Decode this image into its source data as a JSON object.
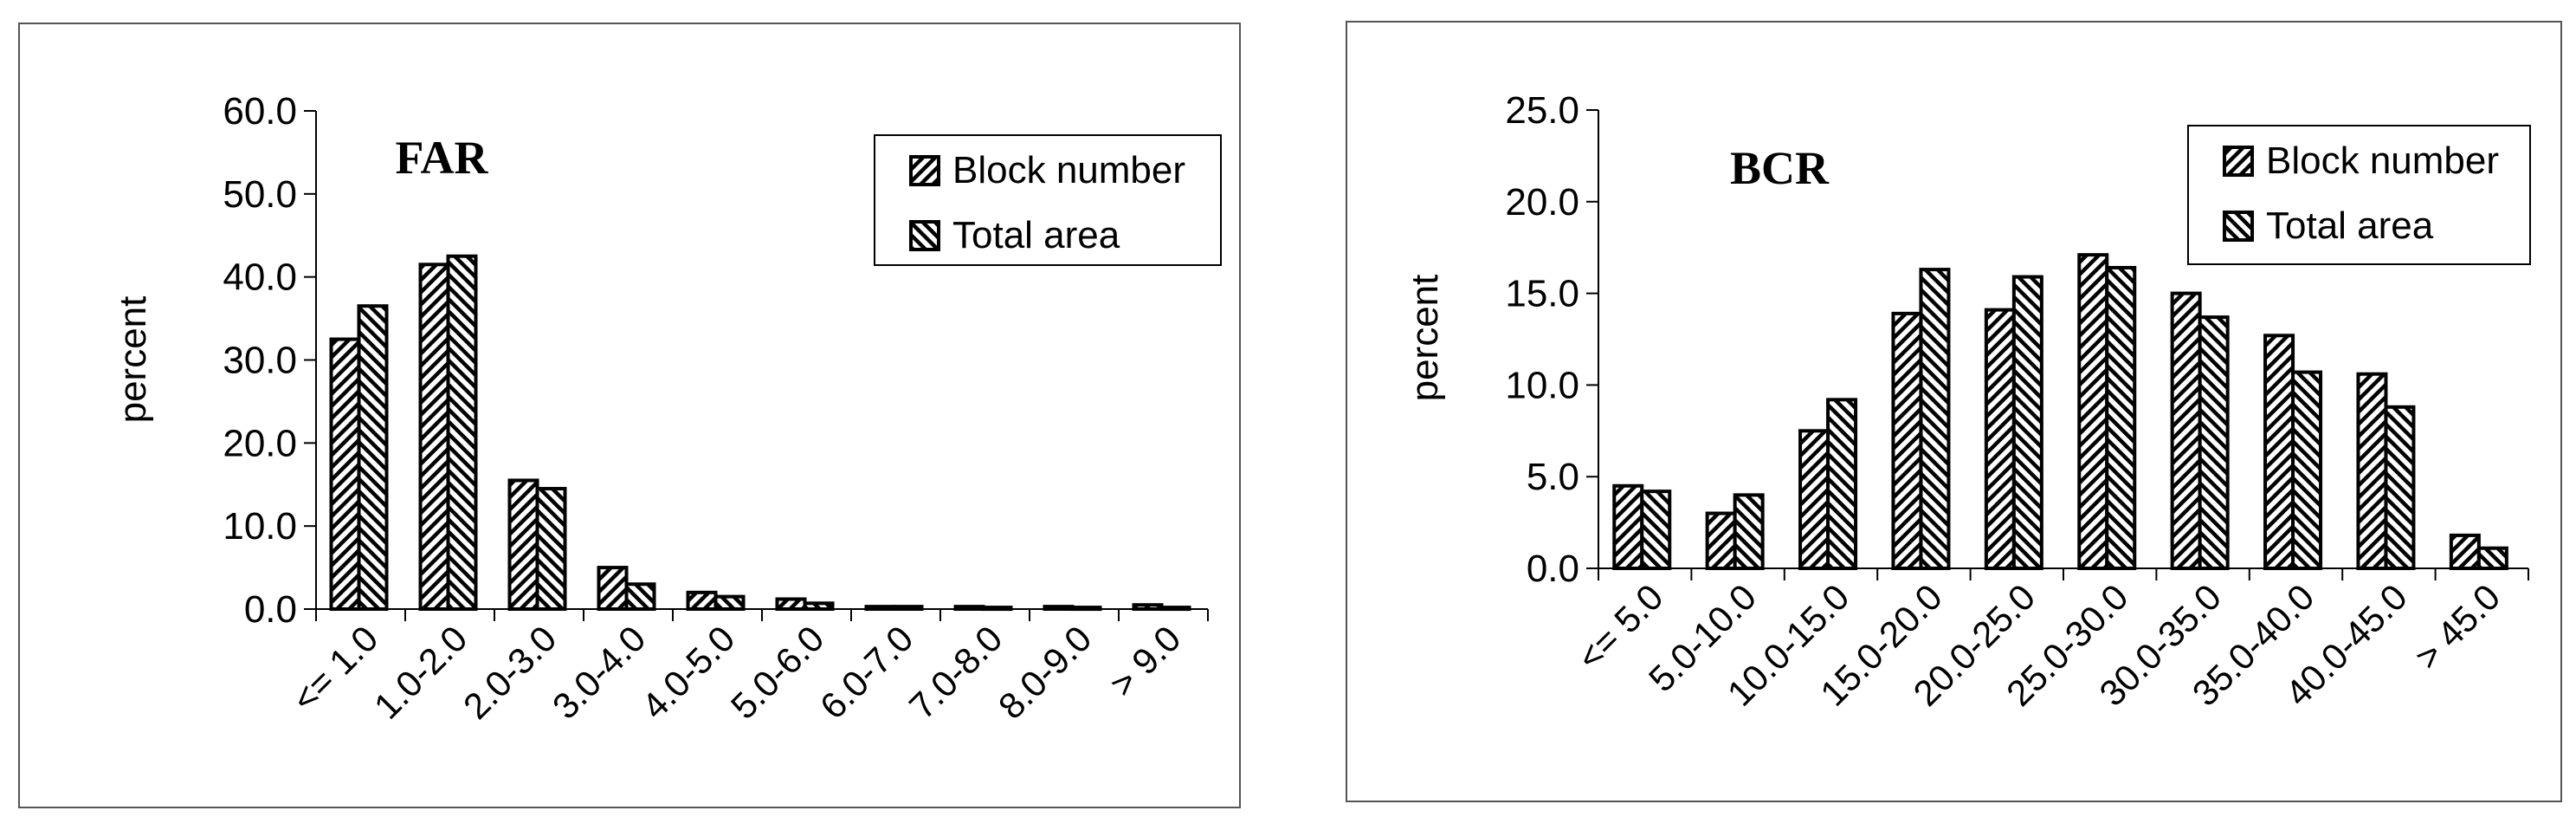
{
  "patterns": {
    "series_colors": [
      "#000000",
      "#000000"
    ]
  },
  "chart_data": [
    {
      "type": "bar",
      "title": "FAR",
      "ylabel": "percent",
      "xlabel": "",
      "ylim": [
        0,
        60
      ],
      "yticks": [
        "0.0",
        "10.0",
        "20.0",
        "30.0",
        "40.0",
        "50.0",
        "60.0"
      ],
      "categories": [
        "<= 1.0",
        "1.0-2.0",
        "2.0-3.0",
        "3.0-4.0",
        "4.0-5.0",
        "5.0-6.0",
        "6.0-7.0",
        "7.0-8.0",
        "8.0-9.0",
        "> 9.0"
      ],
      "series": [
        {
          "name": "Block number",
          "values": [
            32.5,
            41.5,
            15.5,
            5.0,
            2.0,
            1.2,
            0.3,
            0.3,
            0.3,
            0.5
          ]
        },
        {
          "name": "Total area",
          "values": [
            36.5,
            42.5,
            14.5,
            3.0,
            1.5,
            0.7,
            0.3,
            0.2,
            0.2,
            0.2
          ]
        }
      ],
      "grid": false,
      "legend": "top-right"
    },
    {
      "type": "bar",
      "title": "BCR",
      "ylabel": "percent",
      "xlabel": "",
      "ylim": [
        0,
        25
      ],
      "yticks": [
        "0.0",
        "5.0",
        "10.0",
        "15.0",
        "20.0",
        "25.0"
      ],
      "categories": [
        "<= 5.0",
        "5.0-10.0",
        "10.0-15.0",
        "15.0-20.0",
        "20.0-25.0",
        "25.0-30.0",
        "30.0-35.0",
        "35.0-40.0",
        "40.0-45.0",
        "> 45.0"
      ],
      "series": [
        {
          "name": "Block number",
          "values": [
            4.5,
            3.0,
            7.5,
            13.9,
            14.1,
            17.1,
            15.0,
            12.7,
            10.6,
            1.8
          ]
        },
        {
          "name": "Total area",
          "values": [
            4.2,
            4.0,
            9.2,
            16.3,
            15.9,
            16.4,
            13.7,
            10.7,
            8.8,
            1.1
          ]
        }
      ],
      "grid": false,
      "legend": "top-right"
    }
  ]
}
